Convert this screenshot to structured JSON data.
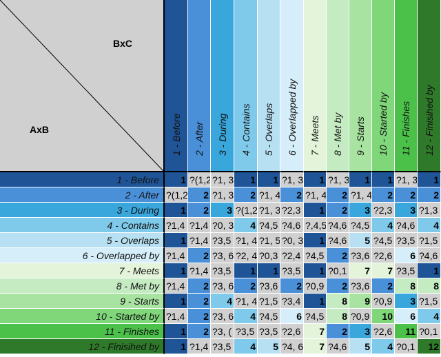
{
  "corner": {
    "top_right_label": "BxC",
    "bottom_left_label": "AxB"
  },
  "columns": [
    {
      "label": "1 - Before",
      "color": "#1f5597"
    },
    {
      "label": "2 - After",
      "color": "#4a90d9"
    },
    {
      "label": "3 - During",
      "color": "#39a6dc"
    },
    {
      "label": "4 - Contains",
      "color": "#7fcaea"
    },
    {
      "label": "5 - Overlaps",
      "color": "#b7e1f3"
    },
    {
      "label": "6 - Overlapped by",
      "color": "#d5eef9"
    },
    {
      "label": "7 - Meets",
      "color": "#e3f4da"
    },
    {
      "label": "8 - Met by",
      "color": "#c5ebc3"
    },
    {
      "label": "9 - Starts",
      "color": "#a9e3a2"
    },
    {
      "label": "10 - Started by",
      "color": "#7fd77a"
    },
    {
      "label": "11 - Finishes",
      "color": "#4cc14a"
    },
    {
      "label": "12 - Finisihed by",
      "color": "#2f7a2a"
    }
  ],
  "rows": [
    {
      "label": "1 - Before",
      "cells": [
        "1",
        "?(1,2",
        "?1, 3",
        "1",
        "1",
        "?1, 3",
        "1",
        "?1, 3",
        "1",
        "1",
        "?1, 3",
        "1"
      ]
    },
    {
      "label": "2 - After",
      "cells": [
        "?(1,2",
        "2",
        "?1, 3",
        "2",
        "?1, 4",
        "2",
        "?1, 4",
        "2",
        "?1, 4",
        "2",
        "2",
        "2"
      ]
    },
    {
      "label": "3 - During",
      "cells": [
        "1",
        "2",
        "3",
        "?(1,2",
        "?1, 3",
        "?2,3",
        "1",
        "2",
        "3",
        "?2,3",
        "3",
        "?1,3"
      ]
    },
    {
      "label": "4 - Contains",
      "cells": [
        "?1,4",
        "?1,4",
        "?0, 3",
        "4",
        "?4,5",
        "?4,6",
        "?,4,5",
        "?4,6",
        "?4,5",
        "4",
        "?4,6",
        "4"
      ]
    },
    {
      "label": "5 - Overlaps",
      "cells": [
        "1",
        "?1,4",
        "?3,5",
        "?1, 4",
        "?1, 5",
        "?0, 3",
        "1",
        "?4,6",
        "5",
        "?4,5",
        "?3,5",
        "?1,5"
      ]
    },
    {
      "label": "6 - Overlapped by",
      "cells": [
        "?1,4",
        "2",
        "?3, 6",
        "?2, 4",
        "?0,3",
        "?2,4",
        "?4,5",
        "2",
        "?3,6",
        "?2,6",
        "6",
        "?4,6"
      ]
    },
    {
      "label": "7 - Meets",
      "cells": [
        "1",
        "?1,4",
        "?3,5",
        "1",
        "1",
        "?3,5",
        "1",
        "?0,1",
        "7",
        "7",
        "?3,5",
        "1"
      ]
    },
    {
      "label": "8 - Met by",
      "cells": [
        "?1,4",
        "2",
        "?3, 6",
        "2",
        "?3,6",
        "2",
        "?0,9",
        "2",
        "?3,6",
        "2",
        "8",
        "8"
      ]
    },
    {
      "label": "9 - Starts",
      "cells": [
        "1",
        "2",
        "4",
        "?1, 4",
        "?1,5",
        "?3,4",
        "1",
        "8",
        "9",
        "?0,9",
        "3",
        "?1,5"
      ]
    },
    {
      "label": "10 - Started by",
      "cells": [
        "?1,4",
        "2",
        "?3, 6",
        "4",
        "?4,5",
        "6",
        "?4,5",
        "8",
        "?0,9",
        "10",
        "6",
        "4"
      ]
    },
    {
      "label": "11 - Finishes",
      "cells": [
        "1",
        "2",
        "?3, (",
        "?3,5",
        "?3,5",
        "?2,6",
        "7",
        "2",
        "3",
        "?2,6",
        "11",
        "?0,1"
      ]
    },
    {
      "label": "12 - Finisihed by",
      "cells": [
        "1",
        "?1,4",
        "?3,5",
        "4",
        "5",
        "?4, 6",
        "7",
        "?4,6",
        "5",
        "4",
        "?0,1",
        "12"
      ]
    }
  ]
}
